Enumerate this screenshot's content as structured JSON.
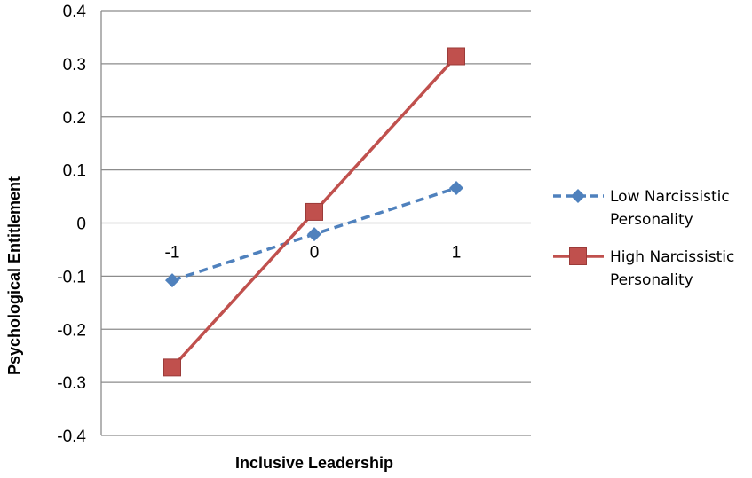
{
  "chart_data": {
    "type": "line",
    "title": "",
    "xlabel": "Inclusive Leadership",
    "ylabel": "Psychological Entitlement",
    "x": [
      -1,
      0,
      1
    ],
    "x_tick_labels": [
      "-1",
      "0",
      "1"
    ],
    "ylim": [
      -0.4,
      0.4
    ],
    "y_ticks": [
      0.4,
      0.3,
      0.2,
      0.1,
      0,
      -0.1,
      -0.2,
      -0.3,
      -0.4
    ],
    "y_tick_labels": [
      "0.4",
      "0.3",
      "0.2",
      "0.1",
      "0",
      "-0.1",
      "-0.2",
      "-0.3",
      "-0.4"
    ],
    "grid": "horizontal",
    "legend_position": "right",
    "series": [
      {
        "name": "Low Narcissistic Personality",
        "legend_lines": [
          "Low Narcissistic",
          "Personality"
        ],
        "values": [
          -0.108,
          -0.021,
          0.066
        ],
        "color": "#4F81BD",
        "line_style": "dashed",
        "marker": "diamond"
      },
      {
        "name": "High Narcissistic Personality",
        "legend_lines": [
          "High Narcissistic",
          "Personality"
        ],
        "values": [
          -0.272,
          0.021,
          0.314
        ],
        "color": "#C0504D",
        "line_style": "solid",
        "marker": "square"
      }
    ]
  }
}
